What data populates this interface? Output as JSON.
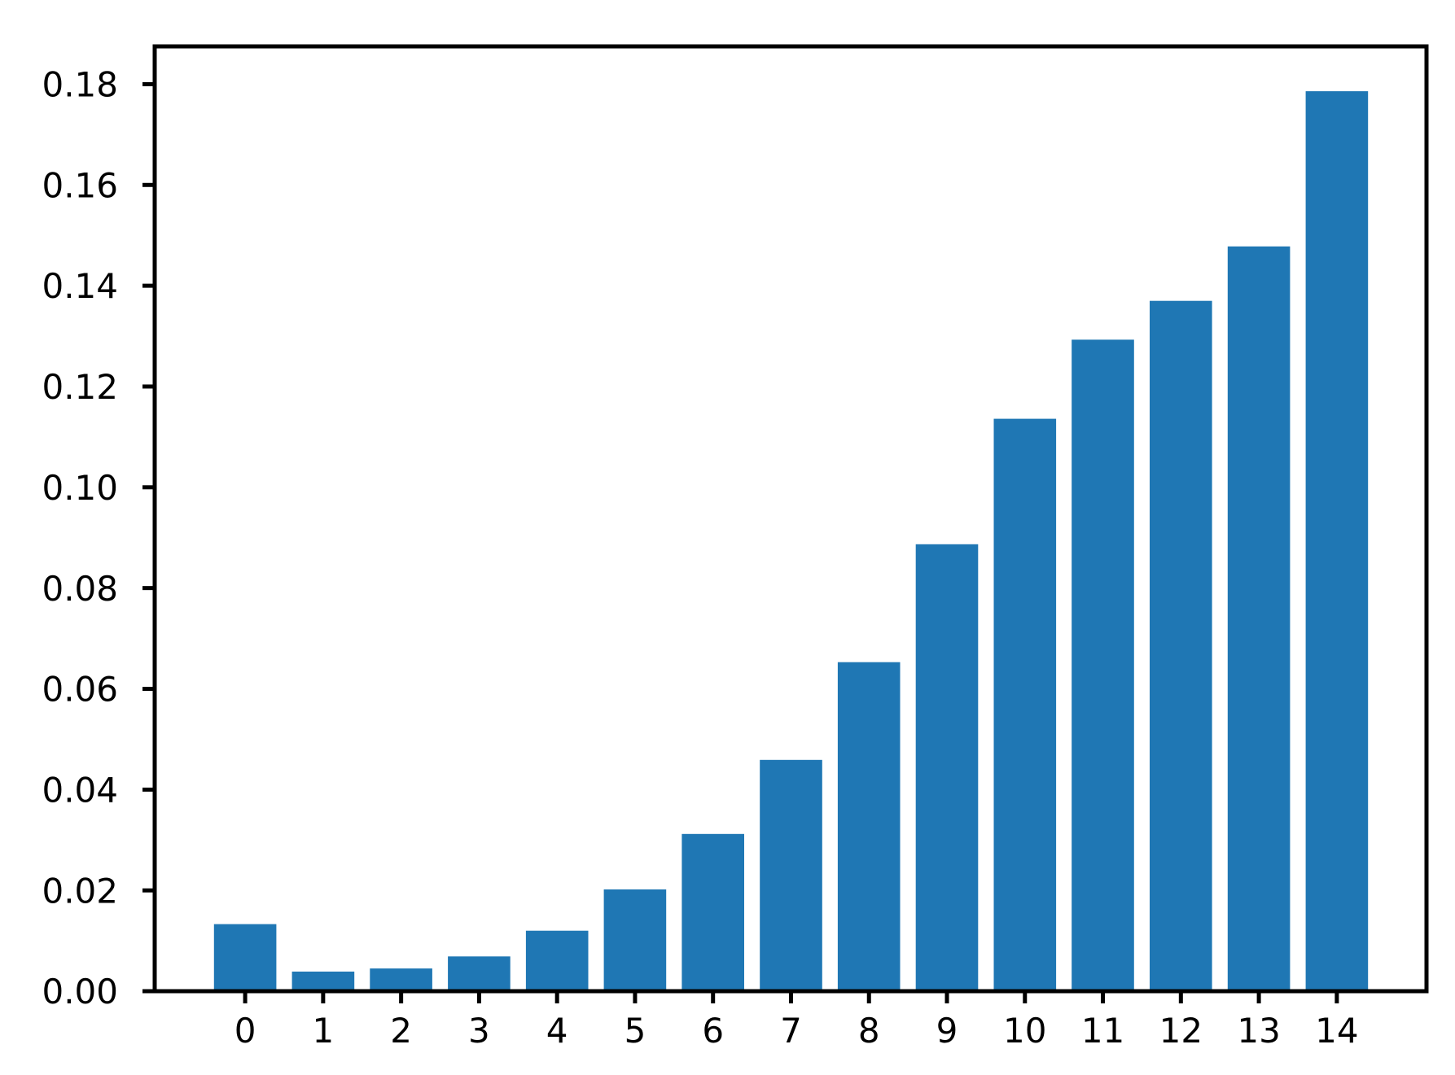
{
  "figure": {
    "background": "#ffffff"
  },
  "chart_data": {
    "type": "bar",
    "title": "",
    "xlabel": "",
    "ylabel": "",
    "categories": [
      "0",
      "1",
      "2",
      "3",
      "4",
      "5",
      "6",
      "7",
      "8",
      "9",
      "10",
      "11",
      "12",
      "13",
      "14"
    ],
    "values": [
      0.0133,
      0.0039,
      0.0045,
      0.0069,
      0.012,
      0.0202,
      0.0312,
      0.0459,
      0.0653,
      0.0887,
      0.1136,
      0.1293,
      0.137,
      0.1478,
      0.1786
    ],
    "bar_color": "#1f77b4",
    "axis_color": "#000000",
    "bar_width": 0.8,
    "xlim": [
      -1.16,
      15.15
    ],
    "ylim": [
      0,
      0.1875
    ],
    "yticks": [
      0.0,
      0.02,
      0.04,
      0.06,
      0.08,
      0.1,
      0.12,
      0.14,
      0.16,
      0.18
    ],
    "ytick_labels": [
      "0.00",
      "0.02",
      "0.04",
      "0.06",
      "0.08",
      "0.10",
      "0.12",
      "0.14",
      "0.16",
      "0.18"
    ],
    "grid": false,
    "legend": null
  }
}
